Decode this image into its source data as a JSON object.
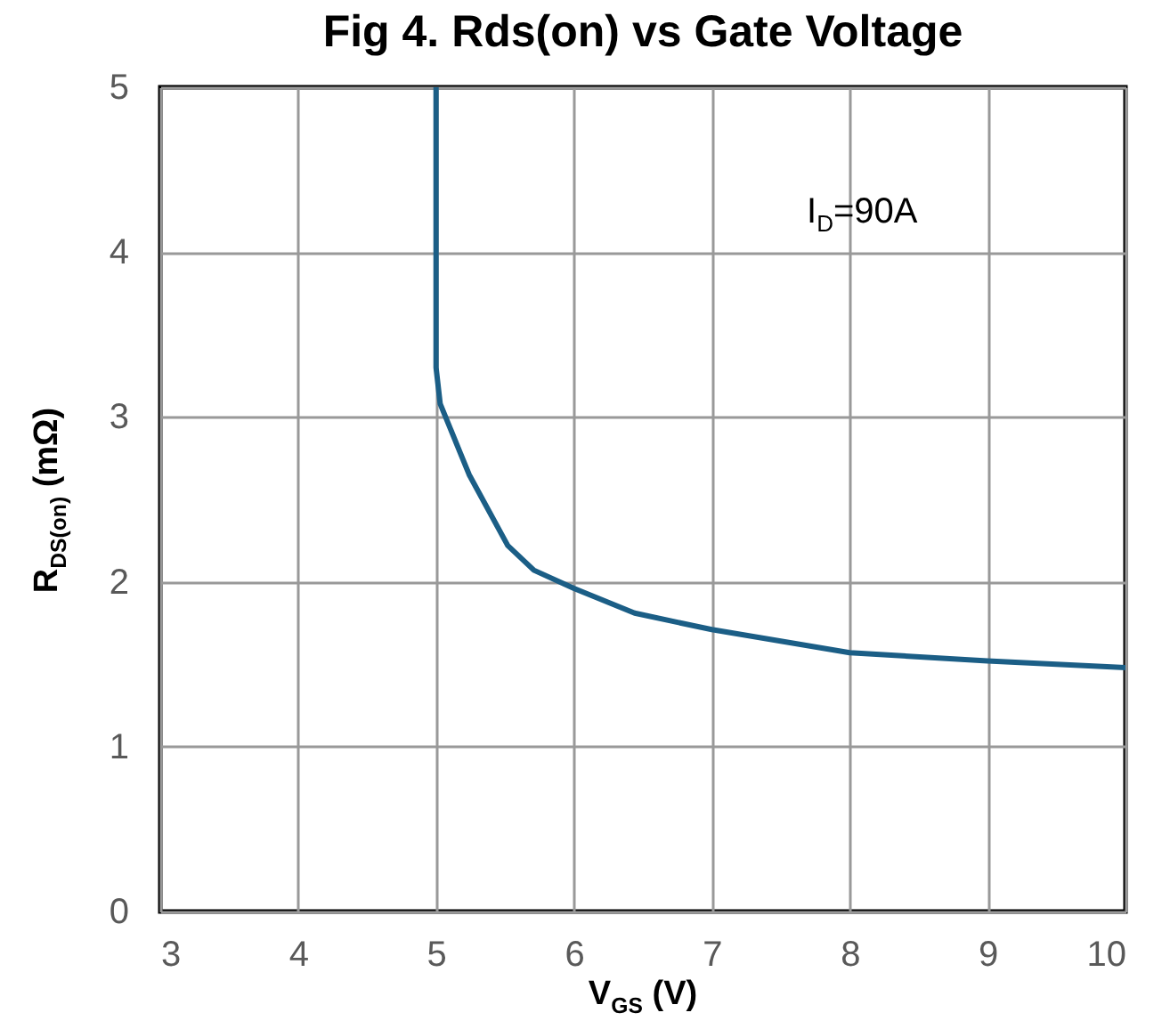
{
  "chart_data": {
    "type": "line",
    "title": "Fig 4. Rds(on) vs Gate Voltage",
    "xlabel": "V$_{GS}$ (V)",
    "ylabel": "R$_{DS(on)}$ (mΩ)",
    "annotations": [
      "I$_{D}$=90A"
    ],
    "series": [
      {
        "color": "#1b5e86",
        "x": [
          5,
          5,
          5.03,
          5.24,
          5.52,
          5.71,
          6,
          6.44,
          7,
          8,
          9,
          10
        ],
        "values": [
          5,
          3.3,
          3.08,
          2.65,
          2.22,
          2.07,
          1.96,
          1.81,
          1.71,
          1.57,
          1.52,
          1.48
        ]
      }
    ],
    "xlim": [
      3,
      10
    ],
    "xticks": [
      3,
      4,
      5,
      6,
      7,
      8,
      9,
      10
    ],
    "ylim": [
      0,
      5
    ],
    "yticks": [
      0,
      1,
      2,
      3,
      4,
      5
    ],
    "grid": true,
    "marker": "none",
    "line_style": "solid"
  }
}
